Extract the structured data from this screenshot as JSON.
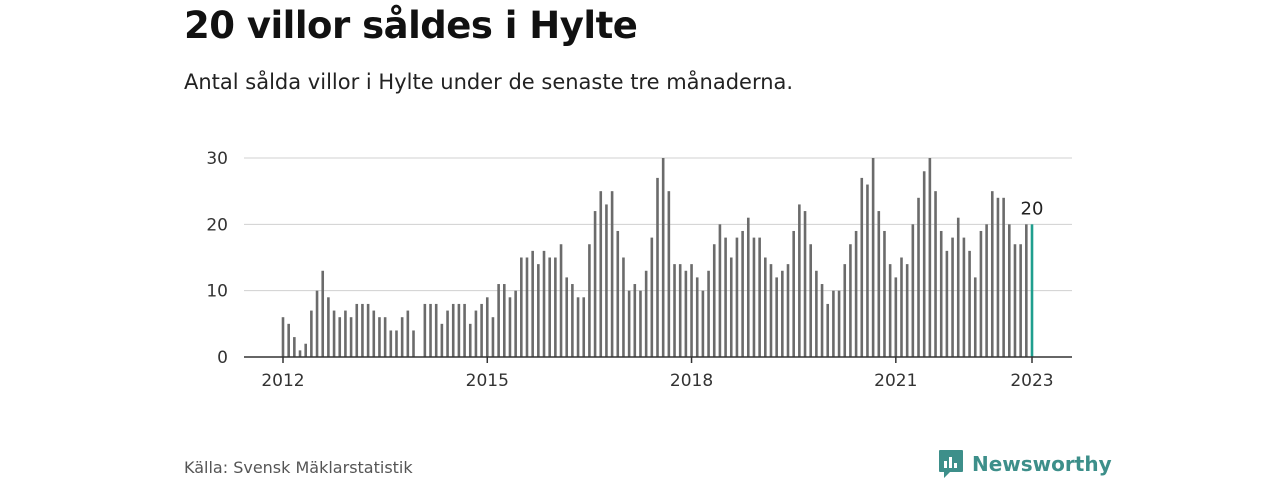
{
  "header": {
    "title": "20 villor såldes i Hylte",
    "subtitle": "Antal sålda villor i Hylte under de senaste tre månaderna."
  },
  "footer": {
    "source": "Källa: Svensk Mäklarstatistik",
    "brand": "Newsworthy"
  },
  "colors": {
    "bar": "#6b6b6b",
    "highlight": "#1f9e8e",
    "grid": "#d0d0d0",
    "axis": "#333333",
    "brand": "#3d8f8a"
  },
  "chart_data": {
    "type": "bar",
    "title": "",
    "xlabel": "",
    "ylabel": "",
    "ylim": [
      0,
      30
    ],
    "yticks": [
      0,
      10,
      20,
      30
    ],
    "xtick_labels": [
      "2012",
      "2015",
      "2018",
      "2021",
      "2023"
    ],
    "start": "2012-01",
    "end": "2023-01",
    "values": [
      6,
      5,
      3,
      1,
      2,
      7,
      10,
      13,
      9,
      7,
      6,
      7,
      6,
      8,
      8,
      8,
      7,
      6,
      6,
      4,
      4,
      6,
      7,
      4,
      null,
      8,
      8,
      8,
      5,
      7,
      8,
      8,
      8,
      5,
      7,
      8,
      9,
      6,
      11,
      11,
      9,
      10,
      15,
      15,
      16,
      14,
      16,
      15,
      15,
      17,
      12,
      11,
      9,
      9,
      17,
      22,
      25,
      23,
      25,
      19,
      15,
      10,
      11,
      10,
      13,
      18,
      27,
      30,
      25,
      14,
      14,
      13,
      14,
      12,
      10,
      13,
      17,
      20,
      18,
      15,
      18,
      19,
      21,
      18,
      18,
      15,
      14,
      12,
      13,
      14,
      19,
      23,
      22,
      17,
      13,
      11,
      8,
      10,
      10,
      14,
      17,
      19,
      27,
      26,
      30,
      22,
      19,
      14,
      12,
      15,
      14,
      20,
      24,
      28,
      30,
      25,
      19,
      16,
      18,
      21,
      18,
      16,
      12,
      19,
      20,
      25,
      24,
      24,
      20,
      17,
      17,
      20,
      20
    ],
    "highlight_label": "20"
  }
}
